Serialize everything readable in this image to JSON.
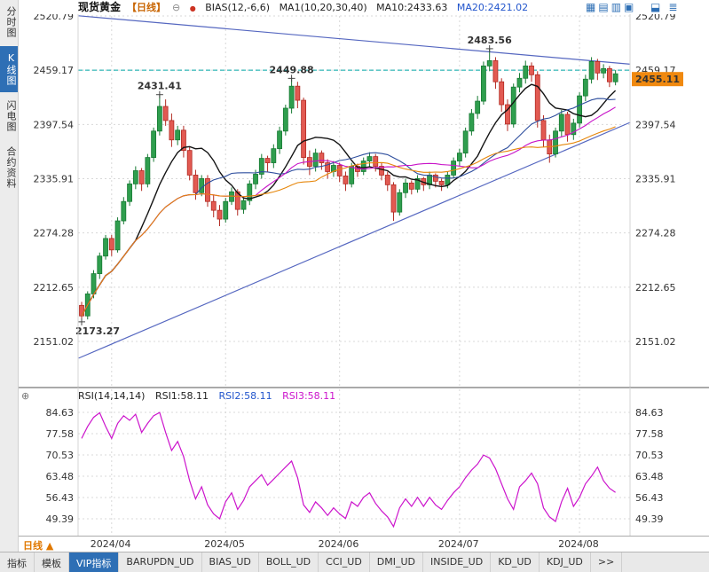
{
  "header": {
    "symbol": "现货黄金",
    "period_tag": "【日线】",
    "collapse_icon": "⊖",
    "legend_dot": "●",
    "bias_label": "BIAS(12,-6,6)",
    "ma_group_label": "MA1(10,20,30,40)",
    "ma10_label": "MA10:2433.63",
    "ma20_label": "MA20:2421.02",
    "window_icons": [
      {
        "name": "grid-layout-1-icon",
        "glyph": "▦"
      },
      {
        "name": "grid-layout-2-icon",
        "glyph": "▤"
      },
      {
        "name": "grid-layout-3-icon",
        "glyph": "▥"
      },
      {
        "name": "grid-layout-4-icon",
        "glyph": "▣"
      }
    ],
    "corner_icons": [
      {
        "name": "panel-toggle-icon",
        "glyph": "⬓"
      },
      {
        "name": "menu-icon",
        "glyph": "≣"
      }
    ]
  },
  "sidebar": {
    "items": [
      {
        "label": "分时图",
        "active": false
      },
      {
        "label": "K线图",
        "active": true
      },
      {
        "label": "闪电图",
        "active": false
      },
      {
        "label": "合约资料",
        "active": false
      }
    ]
  },
  "rsi_header": {
    "gear_icon": "⊕",
    "name": "RSI(14,14,14)",
    "rsi1": "RSI1:58.11",
    "rsi2": "RSI2:58.11",
    "rsi3": "RSI3:58.11"
  },
  "period_selector": {
    "label": "日线",
    "arrow": "▲"
  },
  "bottom_toolbar": {
    "items": [
      {
        "label": "指标",
        "active": false
      },
      {
        "label": "模板",
        "active": false
      },
      {
        "label": "VIP指标",
        "active": true
      },
      {
        "label": "BARUPDN_UD",
        "active": false
      },
      {
        "label": "BIAS_UD",
        "active": false
      },
      {
        "label": "BOLL_UD",
        "active": false
      },
      {
        "label": "CCI_UD",
        "active": false
      },
      {
        "label": "DMI_UD",
        "active": false
      },
      {
        "label": "INSIDE_UD",
        "active": false
      },
      {
        "label": "KD_UD",
        "active": false
      },
      {
        "label": "KDJ_UD",
        "active": false
      },
      {
        "label": ">>",
        "active": false
      }
    ]
  },
  "colors": {
    "up": "#177a33",
    "up_fill": "#2f9e4e",
    "down": "#b22a22",
    "down_fill": "#e25a52",
    "ma10": "#141414",
    "ma20": "#2f4f9e",
    "ma30": "#c813c8",
    "ma40": "#e6860a",
    "trend": "#5567c0",
    "dashed": "#00a8a8",
    "grid": "#d8d8d8",
    "rsi": "#cc14cc",
    "badge": "#f0890f",
    "badge_text": "#402000",
    "annotation_high": "#9e3232",
    "annotation_low": "#1d8a3a",
    "axis_text": "#333333",
    "accent_blue": "#2e6fb5"
  },
  "chart_data": {
    "type": "candlestick",
    "title": "现货黄金 日线",
    "price_axis_ticks": [
      "2520.79",
      "2459.17",
      "2397.54",
      "2335.91",
      "2274.28",
      "2212.65",
      "2151.02"
    ],
    "x_tick_labels": [
      "2024/04",
      "2024/05",
      "2024/06",
      "2024/07",
      "2024/08"
    ],
    "x_tick_indices": [
      5,
      24,
      43,
      63,
      83
    ],
    "ylim": [
      2098,
      2523
    ],
    "dashed_level": 2459.17,
    "last_price": "2455.11",
    "ma_periods": [
      10,
      20,
      30,
      40
    ],
    "ma_values_shown": {
      "ma10": "2433.63",
      "ma20": "2421.02"
    },
    "annotations": [
      {
        "index": 13,
        "price": 2431.4,
        "label": "2431.41",
        "type": "high"
      },
      {
        "index": 35,
        "price": 2449.9,
        "label": "2449.88",
        "type": "high"
      },
      {
        "index": 68,
        "price": 2483.6,
        "label": "2483.56",
        "type": "high"
      },
      {
        "index": 0,
        "price": 2173.3,
        "label": "2173.27",
        "type": "low"
      }
    ],
    "trendlines": [
      {
        "i1": -0.5,
        "p1": 2521,
        "i2": 91.5,
        "p2": 2466
      },
      {
        "i1": -0.5,
        "p1": 2132,
        "i2": 91.5,
        "p2": 2400
      }
    ],
    "candles": [
      [
        2192,
        2196,
        2173.3,
        2180
      ],
      [
        2180,
        2208,
        2176,
        2205
      ],
      [
        2205,
        2232,
        2200,
        2228
      ],
      [
        2228,
        2252,
        2222,
        2248
      ],
      [
        2248,
        2272,
        2244,
        2268
      ],
      [
        2268,
        2272,
        2248,
        2255
      ],
      [
        2255,
        2292,
        2252,
        2288
      ],
      [
        2288,
        2315,
        2284,
        2310
      ],
      [
        2310,
        2334,
        2305,
        2330
      ],
      [
        2330,
        2350,
        2324,
        2345
      ],
      [
        2345,
        2348,
        2322,
        2330
      ],
      [
        2330,
        2364,
        2326,
        2360
      ],
      [
        2360,
        2394,
        2355,
        2390
      ],
      [
        2390,
        2431.4,
        2385,
        2418
      ],
      [
        2418,
        2426,
        2396,
        2402
      ],
      [
        2402,
        2410,
        2372,
        2380
      ],
      [
        2380,
        2396,
        2374,
        2391
      ],
      [
        2391,
        2396,
        2360,
        2368
      ],
      [
        2368,
        2372,
        2334,
        2340
      ],
      [
        2340,
        2346,
        2312,
        2320
      ],
      [
        2320,
        2340,
        2316,
        2336
      ],
      [
        2336,
        2340,
        2304,
        2310
      ],
      [
        2310,
        2318,
        2292,
        2300
      ],
      [
        2300,
        2306,
        2282,
        2290
      ],
      [
        2290,
        2314,
        2286,
        2310
      ],
      [
        2310,
        2326,
        2306,
        2321
      ],
      [
        2321,
        2324,
        2294,
        2301
      ],
      [
        2301,
        2315,
        2296,
        2311
      ],
      [
        2311,
        2334,
        2306,
        2330
      ],
      [
        2330,
        2346,
        2324,
        2341
      ],
      [
        2341,
        2364,
        2336,
        2359
      ],
      [
        2359,
        2362,
        2344,
        2354
      ],
      [
        2354,
        2375,
        2348,
        2370
      ],
      [
        2370,
        2395,
        2364,
        2390
      ],
      [
        2390,
        2420,
        2385,
        2416
      ],
      [
        2416,
        2449.9,
        2410,
        2441
      ],
      [
        2441,
        2446,
        2416,
        2425
      ],
      [
        2425,
        2428,
        2352,
        2360
      ],
      [
        2360,
        2368,
        2340,
        2350
      ],
      [
        2350,
        2370,
        2344,
        2365
      ],
      [
        2365,
        2368,
        2346,
        2354
      ],
      [
        2354,
        2358,
        2336,
        2344
      ],
      [
        2344,
        2356,
        2338,
        2351
      ],
      [
        2351,
        2354,
        2332,
        2339
      ],
      [
        2339,
        2344,
        2322,
        2330
      ],
      [
        2330,
        2354,
        2326,
        2350
      ],
      [
        2350,
        2353,
        2338,
        2344
      ],
      [
        2344,
        2360,
        2340,
        2356
      ],
      [
        2356,
        2366,
        2350,
        2361
      ],
      [
        2361,
        2364,
        2344,
        2350
      ],
      [
        2350,
        2354,
        2334,
        2340
      ],
      [
        2340,
        2344,
        2322,
        2329
      ],
      [
        2329,
        2332,
        2288,
        2298
      ],
      [
        2298,
        2324,
        2294,
        2320
      ],
      [
        2320,
        2336,
        2314,
        2331
      ],
      [
        2331,
        2334,
        2318,
        2324
      ],
      [
        2324,
        2340,
        2320,
        2336
      ],
      [
        2336,
        2338,
        2322,
        2329
      ],
      [
        2329,
        2344,
        2324,
        2340
      ],
      [
        2340,
        2342,
        2326,
        2333
      ],
      [
        2333,
        2336,
        2322,
        2329
      ],
      [
        2329,
        2344,
        2325,
        2340
      ],
      [
        2340,
        2360,
        2336,
        2356
      ],
      [
        2356,
        2370,
        2350,
        2365
      ],
      [
        2365,
        2394,
        2360,
        2390
      ],
      [
        2390,
        2415,
        2385,
        2410
      ],
      [
        2410,
        2430,
        2404,
        2424
      ],
      [
        2424,
        2469,
        2420,
        2464
      ],
      [
        2464,
        2483.6,
        2458,
        2470
      ],
      [
        2470,
        2474,
        2438,
        2446
      ],
      [
        2446,
        2450,
        2412,
        2420
      ],
      [
        2420,
        2426,
        2390,
        2398
      ],
      [
        2398,
        2444,
        2394,
        2440
      ],
      [
        2440,
        2456,
        2434,
        2450
      ],
      [
        2450,
        2470,
        2444,
        2464
      ],
      [
        2464,
        2468,
        2446,
        2454
      ],
      [
        2454,
        2458,
        2394,
        2402
      ],
      [
        2402,
        2408,
        2372,
        2380
      ],
      [
        2380,
        2386,
        2354,
        2364
      ],
      [
        2364,
        2394,
        2360,
        2390
      ],
      [
        2390,
        2414,
        2384,
        2409
      ],
      [
        2409,
        2412,
        2378,
        2386
      ],
      [
        2386,
        2404,
        2380,
        2399
      ],
      [
        2399,
        2434,
        2394,
        2430
      ],
      [
        2430,
        2454,
        2424,
        2449
      ],
      [
        2449,
        2474,
        2444,
        2469
      ],
      [
        2469,
        2472,
        2448,
        2456
      ],
      [
        2456,
        2466,
        2450,
        2461
      ],
      [
        2461,
        2464,
        2440,
        2446
      ],
      [
        2446,
        2459.2,
        2442,
        2455.1
      ]
    ],
    "rsi": {
      "label": "RSI(14,14,14)",
      "axis_ticks": [
        "84.63",
        "77.58",
        "70.53",
        "63.48",
        "56.43",
        "49.39"
      ],
      "values": [
        76,
        80,
        83,
        84.5,
        80,
        76,
        81,
        83.5,
        82,
        84,
        78,
        81,
        83.5,
        84.6,
        78,
        72,
        75,
        70,
        62,
        56,
        60,
        54,
        51,
        49.4,
        55,
        58,
        52.5,
        55.5,
        60,
        62,
        64,
        60.5,
        62.5,
        64.5,
        66.5,
        68.5,
        63,
        54,
        51.5,
        55,
        53,
        50.5,
        53,
        51,
        49.5,
        55,
        53.5,
        56.5,
        58,
        54.5,
        52,
        50,
        46.8,
        53,
        56,
        53.5,
        56.5,
        53.5,
        56.5,
        54,
        52.5,
        55.5,
        58,
        60,
        63,
        65.5,
        67.5,
        70.5,
        69.5,
        66,
        61,
        56,
        52.5,
        60,
        62,
        64.5,
        61,
        53,
        50,
        48.5,
        55,
        59.5,
        53.5,
        56.5,
        61,
        63.5,
        66.5,
        62,
        59.5,
        58.11
      ]
    }
  }
}
